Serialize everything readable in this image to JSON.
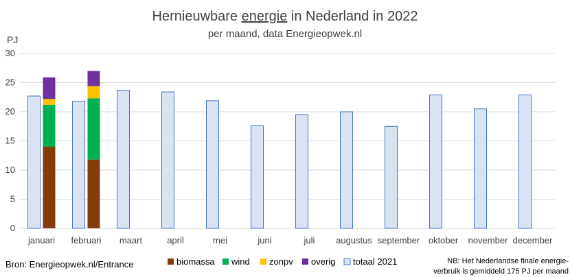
{
  "chart_data": {
    "type": "bar",
    "title_pre": "Hernieuwbare ",
    "title_link": "energie",
    "title_post": " in Nederland in 2022",
    "subtitle": "per maand, data Energieopwek.nl",
    "ylabel": "PJ",
    "ylim": [
      0,
      30
    ],
    "yticks": [
      "0",
      "5",
      "10",
      "15",
      "20",
      "25",
      "30"
    ],
    "grid": true,
    "legend_position": "bottom",
    "categories": [
      "januari",
      "februari",
      "maart",
      "april",
      "mei",
      "juni",
      "juli",
      "augustus",
      "september",
      "oktober",
      "november",
      "december"
    ],
    "totaal_2021": {
      "name": "totaal 2021",
      "color": "#dae3f3",
      "border": "#4472c4",
      "values": [
        22.7,
        21.8,
        23.7,
        23.4,
        21.9,
        17.6,
        19.5,
        20.0,
        17.5,
        22.9,
        20.5,
        22.9
      ]
    },
    "stacked_2022": [
      {
        "name": "biomassa",
        "color": "#843c0c",
        "values": [
          14.0,
          11.8
        ]
      },
      {
        "name": "wind",
        "color": "#00b050",
        "values": [
          7.2,
          10.5
        ]
      },
      {
        "name": "zonpv",
        "color": "#ffc000",
        "values": [
          1.0,
          2.1
        ]
      },
      {
        "name": "overig",
        "color": "#7030a0",
        "values": [
          3.7,
          2.6
        ]
      }
    ],
    "source": "Bron: Energieopwek.nl/Entrance",
    "note_line1": "NB: Het Nederlandse finale energie-",
    "note_line2": "verbruik is gemiddeld 175 PJ per maand"
  }
}
